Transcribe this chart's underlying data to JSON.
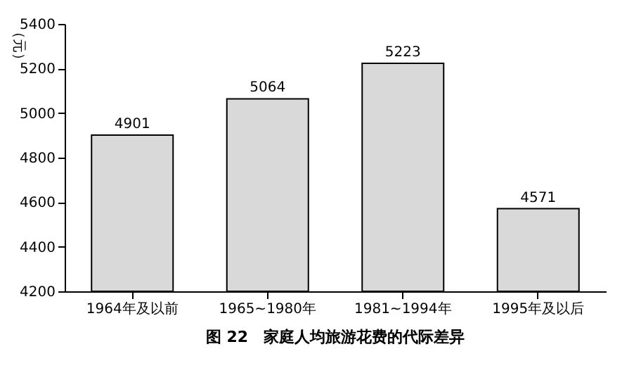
{
  "chart_data": {
    "type": "bar",
    "title": "图 22　家庭人均旅游花费的代际差异",
    "ylabel": "（元）",
    "categories": [
      "1964年及以前",
      "1965~1980年",
      "1981~1994年",
      "1995年及以后"
    ],
    "values": [
      4901,
      5064,
      5223,
      4571
    ],
    "color": "#d9d9d9",
    "ylim": [
      4200,
      5400
    ],
    "yticks": [
      4200,
      4400,
      4600,
      4800,
      5000,
      5200,
      5400
    ],
    "grid": false,
    "data_labels": true
  }
}
